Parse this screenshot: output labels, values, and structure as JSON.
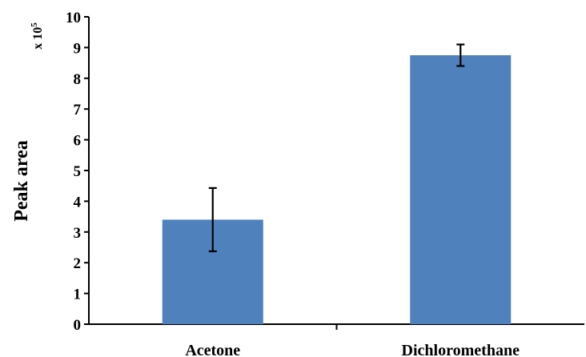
{
  "chart_data": {
    "type": "bar",
    "categories": [
      "Acetone",
      "Dichloromethane"
    ],
    "values": [
      3.4,
      8.75
    ],
    "error": [
      1.03,
      0.35
    ],
    "ylabel": "Peak area",
    "y_multiplier": {
      "base": "x 10",
      "exponent": "5"
    },
    "ylim": [
      0,
      10
    ],
    "yticks": [
      "0",
      "1",
      "2",
      "3",
      "4",
      "5",
      "6",
      "7",
      "8",
      "9",
      "10"
    ],
    "grid": false,
    "bar_color": "#4f81bd"
  }
}
